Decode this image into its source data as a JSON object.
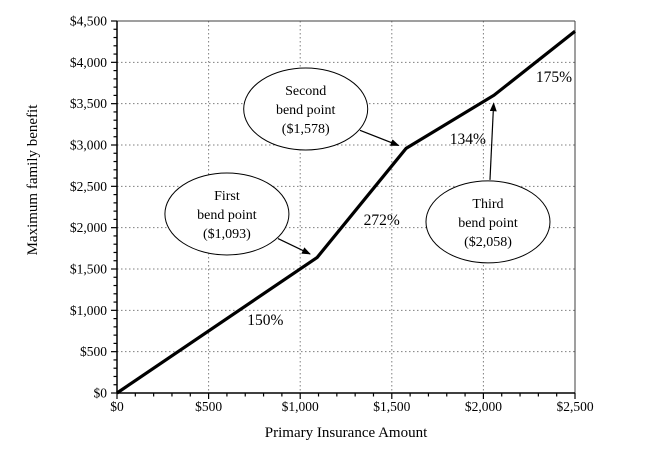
{
  "chart_data": {
    "type": "line",
    "title": "",
    "xlabel": "Primary Insurance Amount",
    "ylabel": "Maximum family benefit",
    "xlim": [
      0,
      2500
    ],
    "ylim": [
      0,
      4500
    ],
    "grid": "dotted-major-both-axes",
    "legend": "none",
    "x_tick_values": [
      0,
      500,
      1000,
      1500,
      2000,
      2500
    ],
    "x_tick_labels": [
      "$0",
      "$500",
      "$1,000",
      "$1,500",
      "$2,000",
      "$2,500"
    ],
    "y_tick_values": [
      0,
      500,
      1000,
      1500,
      2000,
      2500,
      3000,
      3500,
      4000,
      4500
    ],
    "y_tick_labels": [
      "$0",
      "$500",
      "$1,000",
      "$1,500",
      "$2,000",
      "$2,500",
      "$3,000",
      "$3,500",
      "$4,000",
      "$4,500"
    ],
    "minor_tick_step": 100,
    "series": [
      {
        "name": "maximum-family-benefit",
        "x": [
          0,
          1093,
          1578,
          2058,
          2500
        ],
        "y": [
          0,
          1640,
          2959,
          3602,
          4375
        ]
      }
    ],
    "segment_labels": [
      {
        "text": "150%",
        "x": 810,
        "y": 885
      },
      {
        "text": "272%",
        "x": 1445,
        "y": 2095
      },
      {
        "text": "134%",
        "x": 1915,
        "y": 3070
      },
      {
        "text": "175%",
        "x": 2385,
        "y": 3820
      }
    ],
    "annotations": [
      {
        "name": "first-bend-point",
        "lines": [
          "First",
          "bend point",
          "($1,093)"
        ],
        "cx": 600,
        "cy": 2165,
        "target_x": 1093,
        "target_y": 1640
      },
      {
        "name": "second-bend-point",
        "lines": [
          "Second",
          "bend point",
          "($1,578)"
        ],
        "cx": 1030,
        "cy": 3435,
        "target_x": 1578,
        "target_y": 2959
      },
      {
        "name": "third-bend-point",
        "lines": [
          "Third",
          "bend point",
          "($2,058)"
        ],
        "cx": 2025,
        "cy": 2070,
        "target_x": 2058,
        "target_y": 3602
      }
    ]
  },
  "colors": {
    "line": "#000000",
    "grid": "#7f7f7f",
    "frame": "#3f3f3f",
    "axis": "#000000",
    "text": "#000000",
    "background": "#ffffff",
    "annotation_fill": "#ffffff",
    "annotation_stroke": "#000000"
  }
}
